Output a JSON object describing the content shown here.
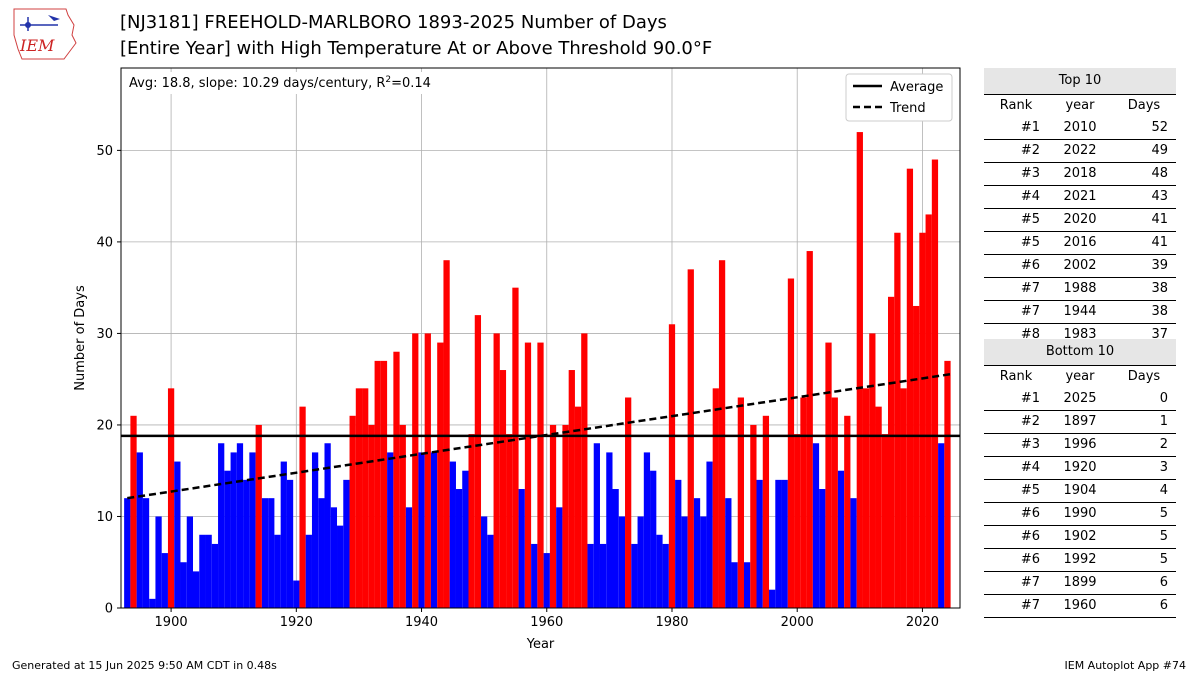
{
  "logo": {
    "text": "IEM",
    "icon": "iowa-state-logo-icon"
  },
  "title": {
    "line1": "[NJ3181] FREEHOLD-MARLBORO 1893-2025 Number of Days",
    "line2": "[Entire Year] with High Temperature At or Above Threshold 90.0°F"
  },
  "chart_data": {
    "type": "bar",
    "ylabel": "Number of Days",
    "xlabel": "Year",
    "xlim": [
      1892,
      2026
    ],
    "ylim": [
      0,
      59
    ],
    "xticks": [
      1900,
      1920,
      1940,
      1960,
      1980,
      2000,
      2020
    ],
    "yticks": [
      0,
      10,
      20,
      30,
      40,
      50
    ],
    "grid": true,
    "annotation": "Avg: 18.8, slope: 10.29 days/century, R²=0.14",
    "average": 18.8,
    "trend": {
      "start": [
        1893,
        12.0
      ],
      "end": [
        2025,
        25.6
      ]
    },
    "legend": {
      "position": "top-right",
      "entries": [
        "Average",
        "Trend"
      ]
    },
    "colors": {
      "above": "#ff0000",
      "below": "#0000ff"
    },
    "years": [
      1893,
      1894,
      1895,
      1896,
      1897,
      1898,
      1899,
      1900,
      1901,
      1902,
      1903,
      1904,
      1905,
      1906,
      1907,
      1908,
      1909,
      1910,
      1911,
      1912,
      1913,
      1914,
      1915,
      1916,
      1917,
      1918,
      1919,
      1920,
      1921,
      1922,
      1923,
      1924,
      1925,
      1926,
      1927,
      1928,
      1929,
      1930,
      1931,
      1932,
      1933,
      1934,
      1935,
      1936,
      1937,
      1938,
      1939,
      1940,
      1941,
      1942,
      1943,
      1944,
      1945,
      1946,
      1947,
      1948,
      1949,
      1950,
      1951,
      1952,
      1953,
      1954,
      1955,
      1956,
      1957,
      1958,
      1959,
      1960,
      1961,
      1962,
      1963,
      1964,
      1965,
      1966,
      1967,
      1968,
      1969,
      1970,
      1971,
      1972,
      1973,
      1974,
      1975,
      1976,
      1977,
      1978,
      1979,
      1980,
      1981,
      1982,
      1983,
      1984,
      1985,
      1986,
      1987,
      1988,
      1989,
      1990,
      1991,
      1992,
      1993,
      1994,
      1995,
      1996,
      1997,
      1998,
      1999,
      2000,
      2001,
      2002,
      2003,
      2004,
      2005,
      2006,
      2007,
      2008,
      2009,
      2010,
      2011,
      2012,
      2013,
      2014,
      2015,
      2016,
      2017,
      2018,
      2019,
      2020,
      2021,
      2022,
      2023,
      2024,
      2025
    ],
    "values": [
      12,
      21,
      17,
      12,
      1,
      10,
      6,
      24,
      16,
      5,
      10,
      4,
      8,
      8,
      7,
      18,
      15,
      17,
      18,
      14,
      17,
      20,
      12,
      12,
      8,
      16,
      14,
      3,
      22,
      8,
      17,
      12,
      18,
      11,
      9,
      14,
      21,
      24,
      24,
      20,
      27,
      27,
      17,
      28,
      20,
      11,
      30,
      17,
      30,
      17,
      29,
      38,
      16,
      13,
      15,
      19,
      32,
      10,
      8,
      30,
      26,
      19,
      35,
      13,
      29,
      7,
      29,
      6,
      20,
      11,
      20,
      26,
      22,
      30,
      7,
      18,
      7,
      17,
      13,
      10,
      23,
      7,
      10,
      17,
      15,
      8,
      7,
      31,
      14,
      10,
      37,
      12,
      10,
      16,
      24,
      38,
      12,
      5,
      23,
      5,
      20,
      14,
      21,
      2,
      14,
      14,
      36,
      19,
      23,
      39,
      18,
      13,
      29,
      23,
      15,
      21,
      12,
      52,
      24,
      30,
      22,
      19,
      34,
      41,
      24,
      48,
      33,
      41,
      43,
      49,
      18,
      27,
      0
    ]
  },
  "top10": {
    "header": "Top 10",
    "columns": [
      "Rank",
      "year",
      "Days"
    ],
    "rows": [
      [
        "#1",
        "2010",
        "52"
      ],
      [
        "#2",
        "2022",
        "49"
      ],
      [
        "#3",
        "2018",
        "48"
      ],
      [
        "#4",
        "2021",
        "43"
      ],
      [
        "#5",
        "2020",
        "41"
      ],
      [
        "#5",
        "2016",
        "41"
      ],
      [
        "#6",
        "2002",
        "39"
      ],
      [
        "#7",
        "1988",
        "38"
      ],
      [
        "#7",
        "1944",
        "38"
      ],
      [
        "#8",
        "1983",
        "37"
      ]
    ]
  },
  "bottom10": {
    "header": "Bottom 10",
    "columns": [
      "Rank",
      "year",
      "Days"
    ],
    "rows": [
      [
        "#1",
        "2025",
        "0"
      ],
      [
        "#2",
        "1897",
        "1"
      ],
      [
        "#3",
        "1996",
        "2"
      ],
      [
        "#4",
        "1920",
        "3"
      ],
      [
        "#5",
        "1904",
        "4"
      ],
      [
        "#6",
        "1990",
        "5"
      ],
      [
        "#6",
        "1902",
        "5"
      ],
      [
        "#6",
        "1992",
        "5"
      ],
      [
        "#7",
        "1899",
        "6"
      ],
      [
        "#7",
        "1960",
        "6"
      ]
    ]
  },
  "footer": {
    "left": "Generated at 15 Jun 2025 9:50 AM CDT in 0.48s",
    "right": "IEM Autoplot App #74"
  }
}
